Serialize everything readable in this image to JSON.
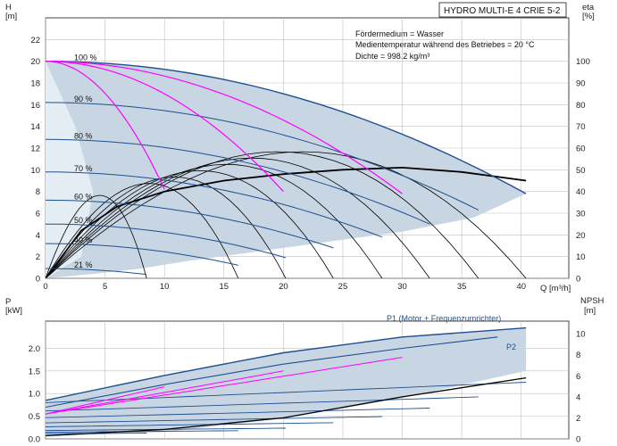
{
  "title": "HYDRO MULTI-E 4 CRIE 5-2",
  "info_lines": [
    "Fördermedium = Wasser",
    "Medientemperatur während des Betriebes = 20 °C",
    "Dichte = 998.2 kg/m³"
  ],
  "colors": {
    "operating_area": "#c8d6e4",
    "speed_curve": "#1f4f8f",
    "efficiency_curve": "#000000",
    "best_efficiency_curve": "#ff00ff",
    "grid": "#bfbfbf"
  },
  "chart_data": [
    {
      "type": "line",
      "name": "head_efficiency",
      "xlabel": "Q [m³/h]",
      "ylabel_left": [
        "H",
        "[m]"
      ],
      "ylabel_right": [
        "eta",
        "[%]"
      ],
      "x_ticks": [
        "0",
        "5",
        "10",
        "15",
        "20",
        "25",
        "30",
        "35",
        "40"
      ],
      "y_ticks_left": [
        "0",
        "2",
        "4",
        "6",
        "8",
        "10",
        "12",
        "14",
        "16",
        "18",
        "20",
        "22"
      ],
      "y_ticks_right": [
        "0",
        "10",
        "20",
        "30",
        "40",
        "50",
        "60",
        "70",
        "80",
        "90",
        "100"
      ],
      "xlim": [
        0,
        44
      ],
      "ylim": [
        0,
        24
      ],
      "ylim_right": [
        0,
        120
      ],
      "grid": true,
      "speed_labels": [
        "100 %",
        "90 %",
        "80 %",
        "70 %",
        "60 %",
        "50 %",
        "40 %",
        "21 %"
      ],
      "speed_fractions": [
        1.0,
        0.9,
        0.8,
        0.7,
        0.6,
        0.5,
        0.4,
        0.21
      ],
      "series": [
        {
          "values": [
            [
              0,
              20.0
            ],
            [
              10,
              19.0
            ],
            [
              20,
              17.0
            ],
            [
              30,
              14.0
            ],
            [
              40.4,
              7.8
            ]
          ]
        },
        {
          "values": [
            [
              0,
              16.2
            ],
            [
              10,
              15.1
            ],
            [
              20,
              13.0
            ],
            [
              30,
              9.8
            ],
            [
              36.4,
              6.3
            ]
          ]
        },
        {
          "values": [
            [
              0,
              12.8
            ],
            [
              10,
              11.7
            ],
            [
              20,
              9.6
            ],
            [
              30,
              6.3
            ],
            [
              32.3,
              5.0
            ]
          ]
        },
        {
          "values": [
            [
              0,
              9.8
            ],
            [
              10,
              8.7
            ],
            [
              20,
              6.6
            ],
            [
              28.3,
              3.8
            ]
          ]
        },
        {
          "values": [
            [
              0,
              7.2
            ],
            [
              10,
              6.1
            ],
            [
              20,
              3.9
            ],
            [
              24.2,
              2.8
            ]
          ]
        },
        {
          "values": [
            [
              0,
              5.0
            ],
            [
              10,
              3.9
            ],
            [
              20.2,
              1.9
            ]
          ]
        },
        {
          "values": [
            [
              0,
              3.2
            ],
            [
              10,
              2.1
            ],
            [
              16.2,
              1.2
            ]
          ]
        },
        {
          "values": [
            [
              0,
              0.9
            ],
            [
              5,
              0.65
            ],
            [
              8.5,
              0.35
            ]
          ]
        }
      ]
    },
    {
      "type": "line",
      "name": "power_npsh",
      "xlabel": "",
      "ylabel_left": [
        "P",
        "[kW]"
      ],
      "ylabel_right": [
        "NPSH",
        "[m]"
      ],
      "y_ticks_left": [
        "0.0",
        "0.5",
        "1.0",
        "1.5",
        "2.0"
      ],
      "y_ticks_right": [
        "0",
        "2",
        "4",
        "6",
        "8",
        "10"
      ],
      "ylim": [
        0,
        2.6
      ],
      "ylim_right": [
        0,
        11.2
      ],
      "grid": true,
      "series": [
        {
          "name": "P1 (Motor + Frequenzumrichter)",
          "values": [
            [
              0,
              0.85
            ],
            [
              10,
              1.4
            ],
            [
              20,
              1.9
            ],
            [
              30,
              2.25
            ],
            [
              40.4,
              2.45
            ]
          ]
        },
        {
          "name": "P2",
          "values": [
            [
              0,
              0.7
            ],
            [
              10,
              1.2
            ],
            [
              20,
              1.65
            ],
            [
              30,
              2.0
            ],
            [
              38,
              2.25
            ]
          ]
        }
      ],
      "npsh": [
        [
          0,
          0.3
        ],
        [
          10,
          0.9
        ],
        [
          20,
          2.0
        ],
        [
          30,
          4.0
        ],
        [
          40.4,
          5.8
        ]
      ]
    }
  ]
}
